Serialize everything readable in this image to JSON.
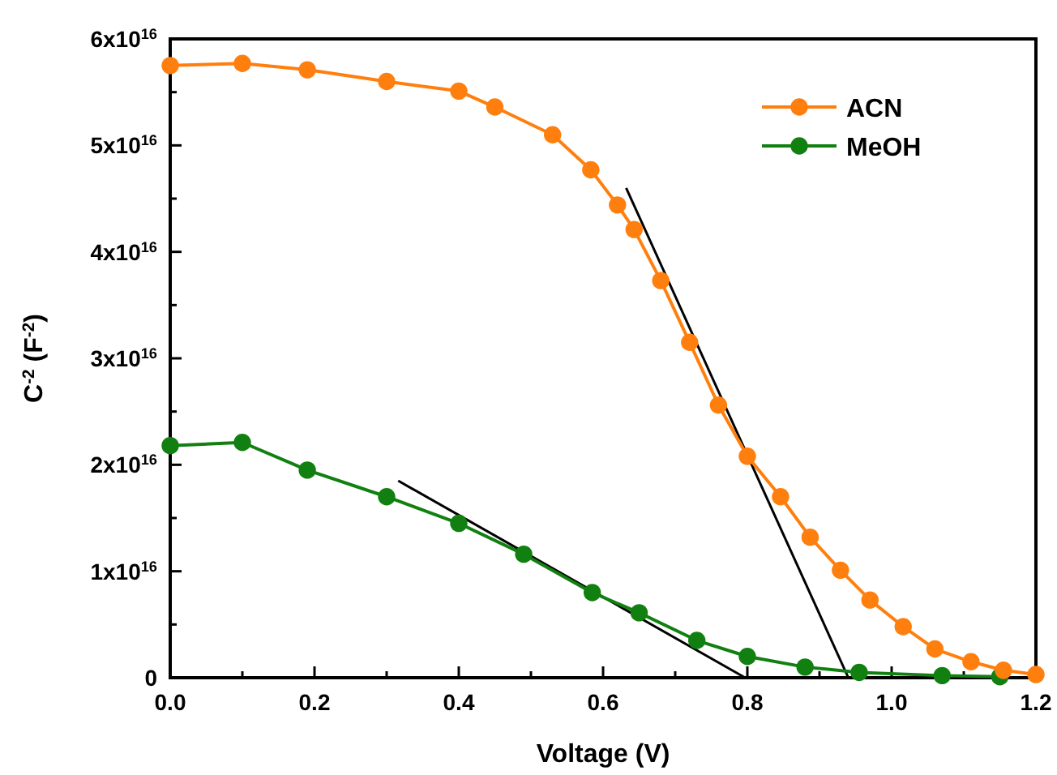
{
  "chart_data": {
    "type": "line",
    "xlabel": "Voltage (V)",
    "ylabel": "C$^{-2}$ (F$^{-2}$)",
    "xlim": [
      0,
      1.2
    ],
    "ylim": [
      0,
      6e+16
    ],
    "xticks": [
      {
        "value": 0,
        "label": "0.0"
      },
      {
        "value": 0.1,
        "label": null
      },
      {
        "value": 0.2,
        "label": "0.2"
      },
      {
        "value": 0.3,
        "label": null
      },
      {
        "value": 0.4,
        "label": "0.4"
      },
      {
        "value": 0.5,
        "label": null
      },
      {
        "value": 0.6,
        "label": "0.6"
      },
      {
        "value": 0.7,
        "label": null
      },
      {
        "value": 0.8,
        "label": "0.8"
      },
      {
        "value": 0.9,
        "label": null
      },
      {
        "value": 1,
        "label": "1.0"
      },
      {
        "value": 1.1,
        "label": null
      },
      {
        "value": 1.2,
        "label": "1.2"
      }
    ],
    "yticks": [
      0,
      {
        "value": 5000000000000000.0,
        "label": null
      },
      {
        "value": 1e+16,
        "label": "1x10$^{16}$"
      },
      {
        "value": 1.5e+16,
        "label": null
      },
      {
        "value": 2e+16,
        "label": "2x10$^{16}$"
      },
      {
        "value": 2.5e+16,
        "label": null
      },
      {
        "value": 3e+16,
        "label": "3x10$^{16}$"
      },
      {
        "value": 3.5e+16,
        "label": null
      },
      {
        "value": 4e+16,
        "label": "4x10$^{16}$"
      },
      {
        "value": 4.5e+16,
        "label": null
      },
      {
        "value": 5e+16,
        "label": "5x10$^{16}$"
      },
      {
        "value": 5.5e+16,
        "label": null
      },
      {
        "value": 6e+16,
        "label": "6x10$^{16}$"
      }
    ],
    "grid": false,
    "legend": "top right",
    "marker": "circle",
    "line_style": "solid",
    "series": [
      {
        "name": "ACN",
        "color": "#ff7f0e",
        "x": [
          0,
          0.1,
          0.19,
          0.3,
          0.4,
          0.45,
          0.53,
          0.583,
          0.62,
          0.643,
          0.68,
          0.72,
          0.76,
          0.8,
          0.846,
          0.887,
          0.929,
          0.97,
          1.016,
          1.06,
          1.11,
          1.155,
          1.2
        ],
        "values": [
          5.75e+16,
          5.77e+16,
          5.71e+16,
          5.6e+16,
          5.51e+16,
          5.36e+16,
          5.1e+16,
          4.77e+16,
          4.44e+16,
          4.21e+16,
          3.73e+16,
          3.15e+16,
          2.56e+16,
          2.08e+16,
          1.7e+16,
          1.32e+16,
          1.01e+16,
          7300000000000000.0,
          4800000000000000.0,
          2700000000000000.0,
          1500000000000000.0,
          700000000000000.0,
          300000000000000.0
        ]
      },
      {
        "name": "MeOH",
        "color": "#118011",
        "x": [
          0,
          0.1,
          0.19,
          0.3,
          0.4,
          0.49,
          0.585,
          0.65,
          0.73,
          0.8,
          0.88,
          0.955,
          1.07,
          1.15
        ],
        "values": [
          2.18e+16,
          2.21e+16,
          1.95e+16,
          1.7e+16,
          1.45e+16,
          1.16e+16,
          8000000000000000.0,
          6100000000000000.0,
          3500000000000000.0,
          2000000000000000.0,
          1000000000000000.0,
          500000000000000.0,
          200000000000000.0,
          100000000000000.0
        ]
      },
      {
        "type": "line",
        "marker": "none",
        "color": "#000000",
        "x": [
          0.632,
          0.94
        ],
        "values": [
          4.6e+16,
          0
        ]
      },
      {
        "type": "line",
        "marker": "none",
        "color": "#000000",
        "x": [
          0.316,
          0.797
        ],
        "values": [
          1.85e+16,
          0
        ]
      }
    ]
  }
}
